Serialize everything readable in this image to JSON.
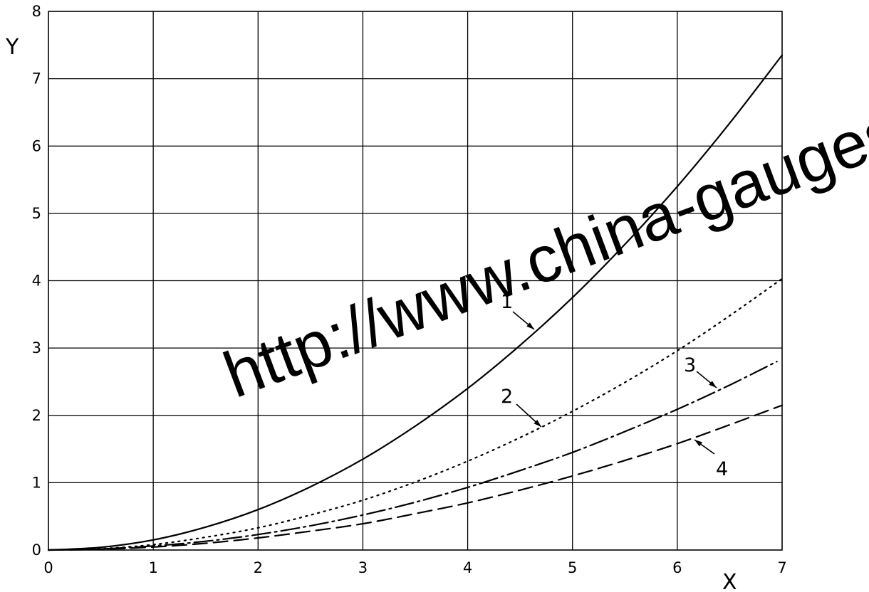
{
  "chart_data": {
    "type": "line",
    "xlabel": "X",
    "ylabel": "Y",
    "xlim": [
      0,
      7
    ],
    "ylim": [
      0,
      8
    ],
    "x_ticks": [
      "0",
      "1",
      "2",
      "3",
      "4",
      "5",
      "6",
      "7"
    ],
    "y_ticks": [
      "0",
      "1",
      "2",
      "3",
      "4",
      "5",
      "6",
      "7",
      "8"
    ],
    "grid": true,
    "series": [
      {
        "name": "1",
        "style": "solid",
        "x": [
          0,
          0.5,
          1,
          1.5,
          2,
          2.5,
          3,
          3.5,
          4,
          4.5,
          5,
          5.5,
          6,
          6.5,
          7
        ],
        "y": [
          0,
          0.04,
          0.15,
          0.34,
          0.6,
          0.94,
          1.35,
          1.84,
          2.4,
          3.04,
          3.75,
          4.54,
          5.4,
          6.34,
          7.35
        ]
      },
      {
        "name": "2",
        "style": "dotted",
        "x": [
          0,
          0.5,
          1,
          1.5,
          2,
          2.5,
          3,
          3.5,
          4,
          4.5,
          5,
          5.5,
          6,
          6.5,
          7
        ],
        "y": [
          0,
          0.02,
          0.08,
          0.19,
          0.33,
          0.52,
          0.74,
          1.01,
          1.32,
          1.67,
          2.06,
          2.49,
          2.96,
          3.48,
          4.03
        ]
      },
      {
        "name": "3",
        "style": "dash-dot",
        "x": [
          0,
          0.5,
          1,
          1.5,
          2,
          2.5,
          3,
          3.5,
          4,
          4.5,
          5,
          5.5,
          6,
          6.5,
          6.95
        ],
        "y": [
          0,
          0.015,
          0.06,
          0.13,
          0.23,
          0.36,
          0.52,
          0.71,
          0.93,
          1.18,
          1.45,
          1.76,
          2.09,
          2.45,
          2.8
        ]
      },
      {
        "name": "4",
        "style": "dashed",
        "x": [
          0,
          0.5,
          1,
          1.5,
          2,
          2.5,
          3,
          3.5,
          4,
          4.5,
          5,
          5.5,
          6,
          6.5,
          7
        ],
        "y": [
          0,
          0.011,
          0.044,
          0.1,
          0.18,
          0.28,
          0.39,
          0.54,
          0.7,
          0.89,
          1.1,
          1.33,
          1.58,
          1.86,
          2.15
        ]
      }
    ]
  },
  "watermark": {
    "text": "http://www.china-gauges.com/"
  }
}
